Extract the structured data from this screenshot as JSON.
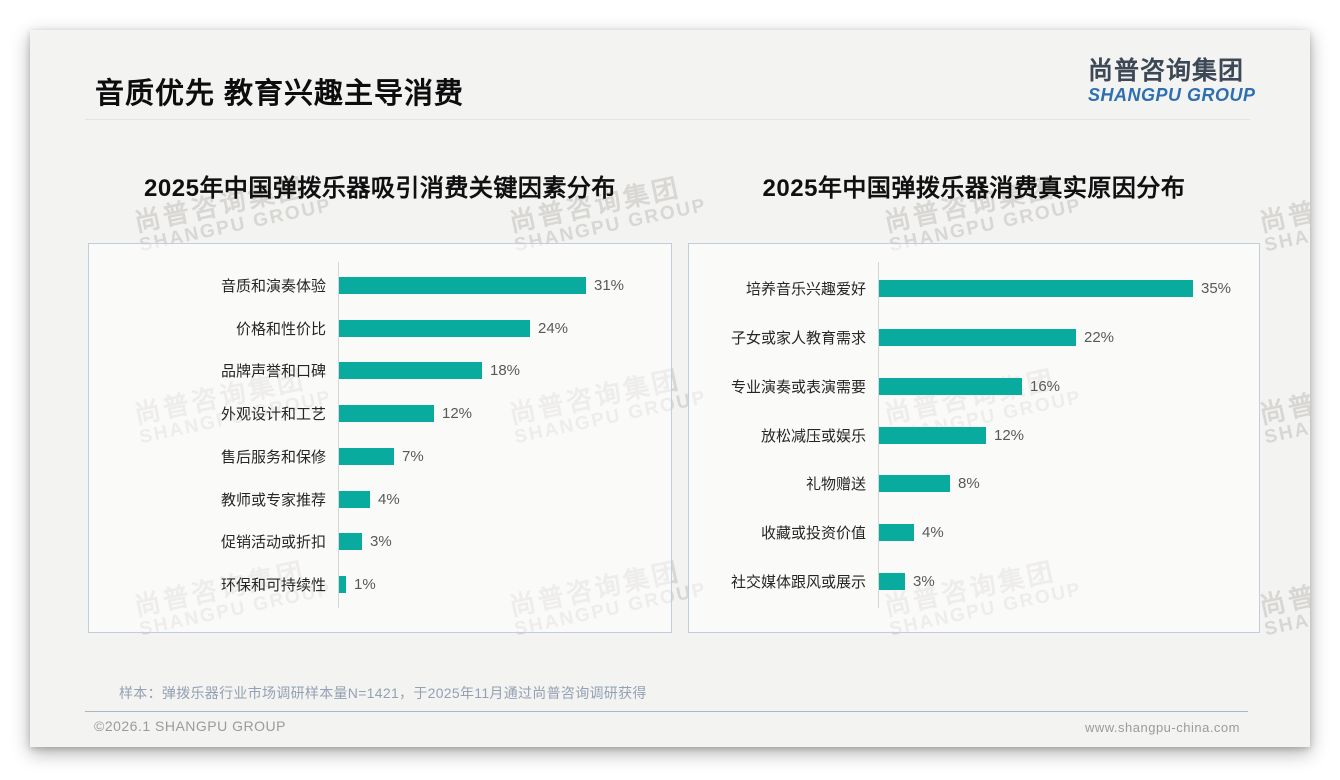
{
  "page": {
    "title": "音质优先 教育兴趣主导消费",
    "logo": {
      "zh": "尚普咨询集团",
      "en": "SHANGPU GROUP"
    },
    "watermark": {
      "line1": "尚普咨询集团",
      "line2": "SHANGPU GROUP"
    },
    "footnote": "样本：弹拨乐器行业市场调研样本量N=1421，于2025年11月通过尚普咨询调研获得",
    "footer": {
      "left": "©2026.1 SHANGPU GROUP",
      "right": "www.shangpu-china.com"
    }
  },
  "colors": {
    "bar": "#09ab9e",
    "slide_bg": "#f3f3f2",
    "panel_border": "#c2cedd",
    "logo_en_blue": "#2e6fb0"
  },
  "chart_data": [
    {
      "type": "bar",
      "orientation": "horizontal",
      "title": "2025年中国弹拨乐器吸引消费关键因素分布",
      "categories": [
        "音质和演奏体验",
        "价格和性价比",
        "品牌声誉和口碑",
        "外观设计和工艺",
        "售后服务和保修",
        "教师或专家推荐",
        "促销活动或折扣",
        "环保和可持续性"
      ],
      "values": [
        31,
        24,
        18,
        12,
        7,
        4,
        3,
        1
      ],
      "value_labels": [
        "31%",
        "24%",
        "18%",
        "12%",
        "7%",
        "4%",
        "3%",
        "1%"
      ],
      "bar_color": "#09ab9e",
      "grid": false,
      "legend": "none",
      "value_axis_visible": false
    },
    {
      "type": "bar",
      "orientation": "horizontal",
      "title": "2025年中国弹拨乐器消费真实原因分布",
      "categories": [
        "培养音乐兴趣爱好",
        "子女或家人教育需求",
        "专业演奏或表演需要",
        "放松减压或娱乐",
        "礼物赠送",
        "收藏或投资价值",
        "社交媒体跟风或展示"
      ],
      "values": [
        35,
        22,
        16,
        12,
        8,
        4,
        3
      ],
      "value_labels": [
        "35%",
        "22%",
        "16%",
        "12%",
        "8%",
        "4%",
        "3%"
      ],
      "bar_color": "#09ab9e",
      "grid": false,
      "legend": "none",
      "value_axis_visible": false
    }
  ]
}
